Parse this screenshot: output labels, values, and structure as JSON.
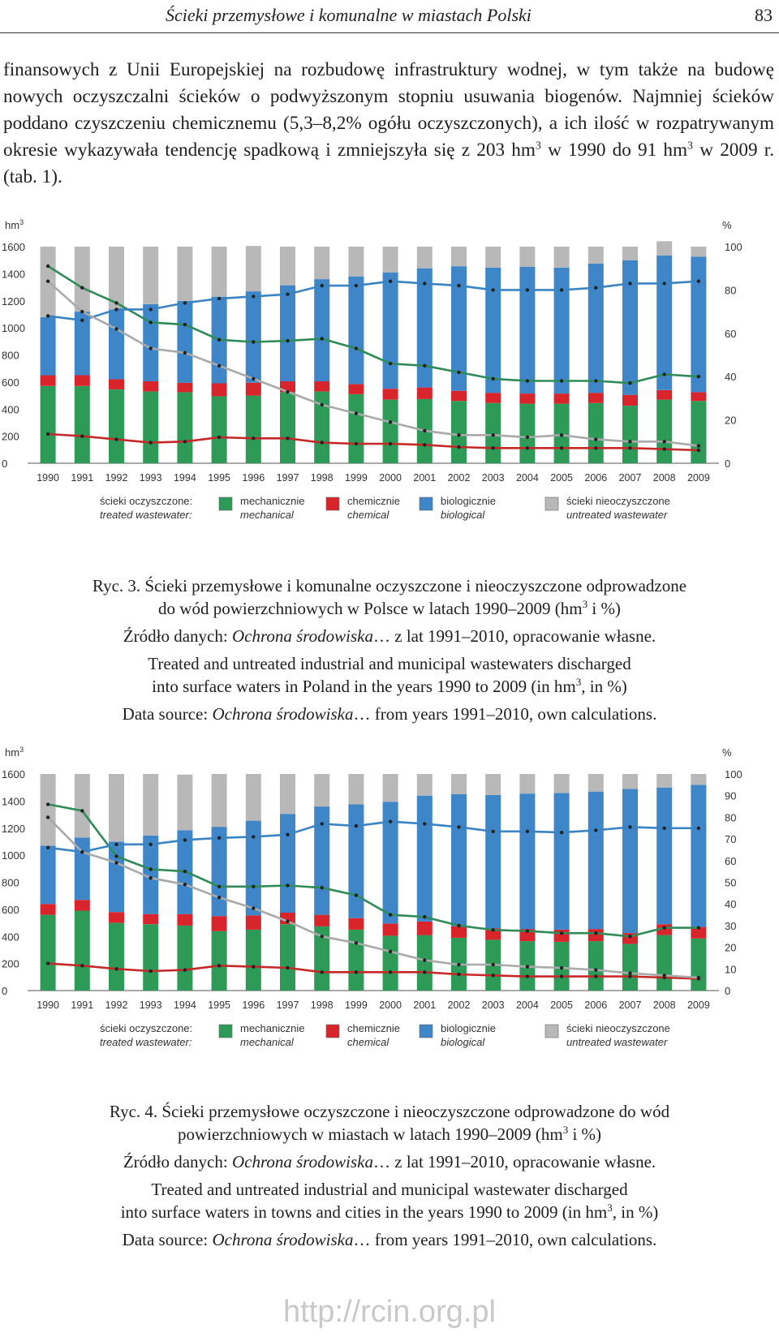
{
  "header": {
    "title": "Ścieki przemysłowe i komunalne w miastach Polski",
    "page_number": "83"
  },
  "body": {
    "part1": "finansowych z Unii Europejskiej na rozbudowę infrastruktury wodnej, w tym także na budowę nowych oczyszczalni ścieków o podwyższonym stopniu usuwania biogenów. Najmniej ścieków poddano czyszczeniu chemicznemu (5,3–8,2% ogółu oczyszczonych), a ich ilość w rozpatrywanym okresie wykazywała tendencję spadkową i zmniejszyła się z 203 hm",
    "sup1": "3",
    "part2": " w 1990 do 91 hm",
    "sup2": "3",
    "part3": " w 2009 r. (tab. 1)."
  },
  "legend": {
    "label_pl": "ścieki oczyszczone:",
    "label_en": "treated wastewater:",
    "items": [
      {
        "pl": "mechanicznie",
        "en": "mechanical",
        "color": "#2e9a57"
      },
      {
        "pl": "chemicznie",
        "en": "chemical",
        "color": "#d8242b"
      },
      {
        "pl": "biologicznie",
        "en": "biological",
        "color": "#3f86c9"
      },
      {
        "pl": "ścieki nieoczyszczone",
        "en": "untreated wastewater",
        "color": "#b8b8b8"
      }
    ]
  },
  "axis_units": {
    "left": "hm3",
    "right": "%"
  },
  "colors": {
    "mechanical": "#2e9a57",
    "chemical": "#d8242b",
    "biological": "#3f86c9",
    "untreated": "#b8b8b8",
    "mech_line": "#2e8b57",
    "chem_line": "#c62828",
    "bio_line": "#3a84c4",
    "untr_line": "#a9a9a9"
  },
  "captions": [
    {
      "pl_1": "Ryc. 3. Ścieki przemysłowe i komunalne oczyszczone i nieoczyszczone odprowadzone",
      "pl_2a": "do wód powierzchniowych w Polsce w latach 1990–2009 (hm",
      "pl_2sup": "3",
      "pl_2b": " i %)",
      "src_pl_a": "Źródło danych: ",
      "src_pl_i": "Ochrona środowiska",
      "src_pl_b": "… z lat 1991–2010, opracowanie własne.",
      "en_1": "Treated and untreated industrial and municipal wastewaters discharged",
      "en_2a": "into surface waters in Poland in the years 1990 to 2009 (in hm",
      "en_2sup": "3",
      "en_2b": ", in %)",
      "src_en_a": "Data source: ",
      "src_en_i": "Ochrona środowiska",
      "src_en_b": "… from years 1991–2010, own calculations."
    },
    {
      "pl_1": "Ryc. 4. Ścieki przemysłowe oczyszczone i nieoczyszczone odprowadzone do wód",
      "pl_2a": "powierzchniowych w miastach w latach 1990–2009 (hm",
      "pl_2sup": "3",
      "pl_2b": " i %)",
      "src_pl_a": "Źródło danych: ",
      "src_pl_i": "Ochrona środowiska",
      "src_pl_b": "… z lat 1991–2010, opracowanie własne.",
      "en_1": "Treated and untreated industrial and municipal wastewater discharged",
      "en_2a": "into surface waters in towns and cities in the years 1990 to 2009 (in hm",
      "en_2sup": "3",
      "en_2b": ", in %)",
      "src_en_a": "Data source: ",
      "src_en_i": "Ochrona środowiska",
      "src_en_b": "… from years 1991–2010, own calculations."
    }
  ],
  "chart_data": [
    {
      "type": "bar",
      "stacked": true,
      "categories": [
        "1990",
        "1991",
        "1992",
        "1993",
        "1994",
        "1995",
        "1996",
        "1997",
        "1998",
        "1999",
        "2000",
        "2001",
        "2002",
        "2003",
        "2004",
        "2005",
        "2006",
        "2007",
        "2008",
        "2009"
      ],
      "ylim": [
        0,
        1600
      ],
      "yticks": [
        0,
        200,
        400,
        600,
        800,
        1000,
        1200,
        1400,
        1600
      ],
      "y2lim": [
        0,
        100
      ],
      "y2ticks": [
        0,
        20,
        40,
        60,
        80,
        100
      ],
      "series": [
        {
          "name": "mechanicznie / mechanical",
          "values": [
            570,
            570,
            545,
            530,
            525,
            495,
            500,
            525,
            530,
            510,
            470,
            475,
            460,
            445,
            440,
            440,
            445,
            425,
            470,
            460
          ]
        },
        {
          "name": "chemicznie / chemical",
          "values": [
            80,
            80,
            75,
            75,
            70,
            95,
            95,
            80,
            75,
            75,
            80,
            85,
            75,
            75,
            75,
            75,
            75,
            80,
            70,
            65
          ]
        },
        {
          "name": "biologicznie / biological",
          "values": [
            430,
            470,
            515,
            570,
            605,
            640,
            675,
            710,
            755,
            795,
            860,
            880,
            920,
            925,
            935,
            930,
            955,
            995,
            995,
            1000
          ]
        },
        {
          "name": "ścieki nieoczyszczone / untreated wastewater",
          "values": [
            520,
            480,
            465,
            425,
            400,
            370,
            335,
            285,
            240,
            220,
            190,
            160,
            145,
            155,
            150,
            155,
            125,
            100,
            105,
            75
          ]
        }
      ],
      "lines_percent": [
        {
          "series": "mechanicznie / mechanical",
          "values": [
            91,
            81,
            74,
            65,
            64,
            57,
            56,
            56.5,
            57.5,
            53,
            46,
            45,
            42,
            39,
            38,
            38,
            38,
            37,
            41,
            40
          ]
        },
        {
          "series": "chemicznie / chemical",
          "values": [
            13.5,
            12.5,
            11,
            9.5,
            10,
            12,
            11.5,
            11.5,
            9.5,
            9,
            9,
            8.5,
            7.5,
            7,
            7,
            7,
            7,
            7,
            6.5,
            6
          ]
        },
        {
          "series": "biologicznie / biological",
          "values": [
            68,
            66,
            71,
            71,
            74,
            76,
            77,
            78,
            82,
            82,
            84,
            83,
            82,
            80,
            80,
            80,
            81,
            83,
            83,
            84
          ]
        },
        {
          "series": "ścieki nieoczyszczone / untreated wastewater",
          "values": [
            84,
            70,
            62,
            53,
            51,
            45,
            39,
            33,
            27,
            23,
            19,
            15,
            13,
            13,
            12,
            13,
            11,
            10,
            10,
            8
          ]
        }
      ]
    },
    {
      "type": "bar",
      "stacked": true,
      "categories": [
        "1990",
        "1991",
        "1992",
        "1993",
        "1994",
        "1995",
        "1996",
        "1997",
        "1998",
        "1999",
        "2000",
        "2001",
        "2002",
        "2003",
        "2004",
        "2005",
        "2006",
        "2007",
        "2008",
        "2009"
      ],
      "ylim": [
        0,
        1600
      ],
      "yticks": [
        0,
        200,
        400,
        600,
        800,
        1000,
        1200,
        1400,
        1600
      ],
      "y2lim": [
        0,
        100
      ],
      "y2ticks": [
        0,
        10,
        20,
        30,
        40,
        50,
        60,
        70,
        80,
        90,
        100
      ],
      "series": [
        {
          "name": "mechanicznie / mechanical",
          "values": [
            560,
            590,
            500,
            490,
            480,
            440,
            450,
            490,
            475,
            450,
            405,
            410,
            390,
            375,
            365,
            360,
            365,
            345,
            410,
            385
          ]
        },
        {
          "name": "chemicznie / chemical",
          "values": [
            80,
            80,
            80,
            75,
            85,
            110,
            105,
            85,
            85,
            85,
            90,
            100,
            85,
            85,
            90,
            90,
            90,
            80,
            80,
            85
          ]
        },
        {
          "name": "biologicznie / biological",
          "values": [
            430,
            460,
            520,
            580,
            620,
            660,
            700,
            730,
            800,
            840,
            900,
            930,
            975,
            985,
            1000,
            1010,
            1015,
            1065,
            1010,
            1050
          ]
        },
        {
          "name": "ścieki nieoczyszczone / untreated wastewater",
          "values": [
            530,
            470,
            500,
            455,
            410,
            390,
            345,
            295,
            240,
            225,
            205,
            160,
            150,
            155,
            145,
            140,
            130,
            110,
            100,
            80
          ]
        }
      ],
      "lines_percent": [
        {
          "series": "mechanicznie / mechanical",
          "values": [
            86,
            83,
            62,
            56,
            55,
            48,
            48,
            48.5,
            47.5,
            44,
            35,
            34,
            30,
            28,
            27.5,
            26.5,
            26.5,
            25,
            29,
            29
          ]
        },
        {
          "series": "chemicznie / chemical",
          "values": [
            12.5,
            11.5,
            10,
            9,
            9.5,
            11.5,
            11,
            10.5,
            8.5,
            8.5,
            8.5,
            8.5,
            7.5,
            7,
            6.5,
            6.5,
            6.5,
            6.5,
            6,
            5.5
          ]
        },
        {
          "name_ref": "",
          "series": "biologicznie / biological",
          "values": [
            66,
            64,
            67.5,
            67.5,
            69.5,
            70.5,
            71,
            72,
            77,
            76,
            78,
            77,
            75.5,
            73.5,
            73.5,
            73,
            74,
            75.5,
            75,
            75
          ]
        },
        {
          "series": "ścieki nieoczyszczone / untreated wastewater",
          "values": [
            80,
            64,
            59,
            52,
            49,
            43,
            38,
            32,
            25,
            22,
            18,
            14,
            12,
            12,
            11,
            10.5,
            9.5,
            8,
            7,
            6
          ]
        }
      ]
    }
  ],
  "footer": {
    "url": "http://rcin.org.pl"
  }
}
